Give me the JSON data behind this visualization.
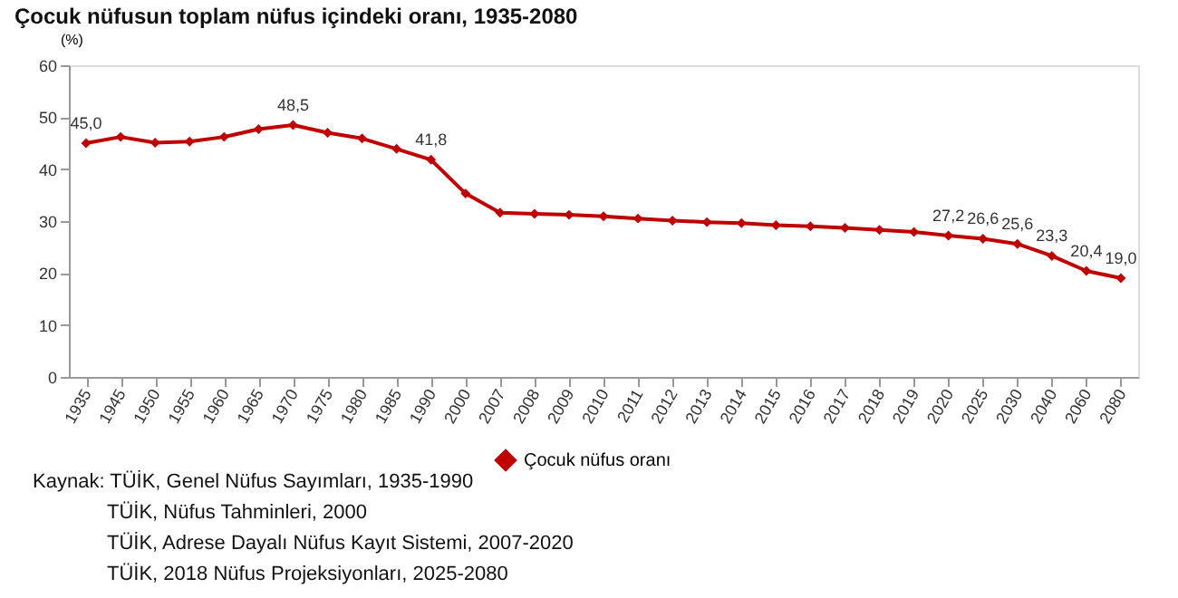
{
  "chart_data": {
    "type": "line",
    "title": "Çocuk nüfusun toplam nüfus içindeki oranı, 1935-2080",
    "ylabel": "(%)",
    "categories": [
      "1935",
      "1945",
      "1950",
      "1955",
      "1960",
      "1965",
      "1970",
      "1975",
      "1980",
      "1985",
      "1990",
      "2000",
      "2007",
      "2008",
      "2009",
      "2010",
      "2011",
      "2012",
      "2013",
      "2014",
      "2015",
      "2016",
      "2017",
      "2018",
      "2019",
      "2020",
      "2025",
      "2030",
      "2040",
      "2060",
      "2080"
    ],
    "series": [
      {
        "name": "Çocuk nüfus oranı",
        "color": "#c00000",
        "values": [
          45.0,
          46.2,
          45.1,
          45.3,
          46.2,
          47.7,
          48.5,
          47.0,
          45.9,
          43.9,
          41.8,
          35.3,
          31.6,
          31.4,
          31.2,
          30.9,
          30.5,
          30.1,
          29.8,
          29.6,
          29.2,
          29.0,
          28.7,
          28.3,
          27.9,
          27.2,
          26.6,
          25.6,
          23.3,
          20.4,
          19.0
        ],
        "value_labels": [
          "45,0",
          null,
          null,
          null,
          null,
          null,
          "48,5",
          null,
          null,
          null,
          "41,8",
          null,
          null,
          null,
          null,
          null,
          null,
          null,
          null,
          null,
          null,
          null,
          null,
          null,
          null,
          "27,2",
          "26,6",
          "25,6",
          "23,3",
          "20,4",
          "19,0"
        ]
      }
    ],
    "ylim": [
      0,
      60
    ],
    "yticks": [
      0,
      10,
      20,
      30,
      40,
      50,
      60
    ],
    "grid": false,
    "legend": "bottom",
    "marker": "diamond",
    "line_style": "solid",
    "annotations": [
      "Kaynak: TÜİK, Genel Nüfus Sayımları, 1935-1990",
      "TÜİK, Nüfus Tahminleri, 2000",
      "TÜİK, Adrese Dayalı Nüfus Kayıt Sistemi, 2007-2020",
      "TÜİK, 2018 Nüfus Projeksiyonları, 2025-2080"
    ]
  }
}
